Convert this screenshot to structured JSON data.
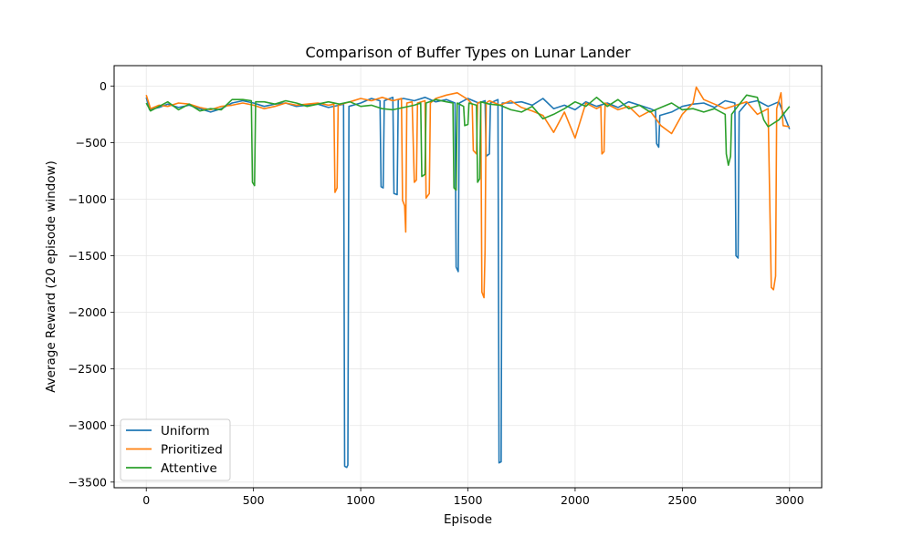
{
  "chart_data": {
    "type": "line",
    "title": "Comparison of Buffer Types on Lunar Lander",
    "xlabel": "Episode",
    "ylabel": "Average Reward (20 episode window)",
    "xlim": [
      -150,
      3150
    ],
    "ylim": [
      -3550,
      180
    ],
    "xticks": [
      0,
      500,
      1000,
      1500,
      2000,
      2500,
      3000
    ],
    "yticks": [
      0,
      -500,
      -1000,
      -1500,
      -2000,
      -2500,
      -3000,
      -3500
    ],
    "xtick_labels": [
      "0",
      "500",
      "1000",
      "1500",
      "2000",
      "2500",
      "3000"
    ],
    "ytick_labels": [
      "0",
      "−500",
      "−1000",
      "−1500",
      "−2000",
      "−2500",
      "−3000",
      "−3500"
    ],
    "grid": true,
    "legend_position": "lower-left",
    "series": [
      {
        "name": "Uniform",
        "color": "#1f77b4",
        "points": [
          [
            0,
            -100
          ],
          [
            15,
            -210
          ],
          [
            60,
            -190
          ],
          [
            100,
            -160
          ],
          [
            150,
            -190
          ],
          [
            200,
            -170
          ],
          [
            250,
            -200
          ],
          [
            300,
            -230
          ],
          [
            350,
            -200
          ],
          [
            400,
            -150
          ],
          [
            450,
            -130
          ],
          [
            500,
            -150
          ],
          [
            550,
            -180
          ],
          [
            600,
            -160
          ],
          [
            650,
            -150
          ],
          [
            700,
            -180
          ],
          [
            750,
            -170
          ],
          [
            800,
            -160
          ],
          [
            850,
            -190
          ],
          [
            900,
            -170
          ],
          [
            920,
            -160
          ],
          [
            925,
            -3360
          ],
          [
            935,
            -3370
          ],
          [
            940,
            -3350
          ],
          [
            945,
            -180
          ],
          [
            1000,
            -150
          ],
          [
            1050,
            -110
          ],
          [
            1090,
            -130
          ],
          [
            1095,
            -890
          ],
          [
            1105,
            -900
          ],
          [
            1110,
            -130
          ],
          [
            1150,
            -100
          ],
          [
            1155,
            -950
          ],
          [
            1170,
            -960
          ],
          [
            1175,
            -120
          ],
          [
            1200,
            -110
          ],
          [
            1250,
            -130
          ],
          [
            1300,
            -100
          ],
          [
            1350,
            -140
          ],
          [
            1400,
            -120
          ],
          [
            1440,
            -150
          ],
          [
            1445,
            -1600
          ],
          [
            1455,
            -1640
          ],
          [
            1460,
            -150
          ],
          [
            1500,
            -110
          ],
          [
            1550,
            -150
          ],
          [
            1580,
            -130
          ],
          [
            1585,
            -620
          ],
          [
            1600,
            -600
          ],
          [
            1605,
            -150
          ],
          [
            1640,
            -120
          ],
          [
            1645,
            -3330
          ],
          [
            1655,
            -3320
          ],
          [
            1660,
            -150
          ],
          [
            1700,
            -150
          ],
          [
            1750,
            -140
          ],
          [
            1800,
            -170
          ],
          [
            1850,
            -110
          ],
          [
            1900,
            -200
          ],
          [
            1950,
            -170
          ],
          [
            2000,
            -210
          ],
          [
            2050,
            -140
          ],
          [
            2100,
            -180
          ],
          [
            2150,
            -150
          ],
          [
            2200,
            -190
          ],
          [
            2250,
            -140
          ],
          [
            2300,
            -170
          ],
          [
            2350,
            -200
          ],
          [
            2375,
            -220
          ],
          [
            2380,
            -510
          ],
          [
            2390,
            -540
          ],
          [
            2395,
            -260
          ],
          [
            2450,
            -230
          ],
          [
            2500,
            -180
          ],
          [
            2550,
            -160
          ],
          [
            2600,
            -150
          ],
          [
            2650,
            -190
          ],
          [
            2700,
            -130
          ],
          [
            2745,
            -150
          ],
          [
            2750,
            -1500
          ],
          [
            2760,
            -1520
          ],
          [
            2765,
            -230
          ],
          [
            2800,
            -150
          ],
          [
            2850,
            -130
          ],
          [
            2900,
            -180
          ],
          [
            2950,
            -140
          ],
          [
            3000,
            -380
          ]
        ]
      },
      {
        "name": "Prioritized",
        "color": "#ff7f0e",
        "points": [
          [
            0,
            -80
          ],
          [
            20,
            -200
          ],
          [
            60,
            -170
          ],
          [
            100,
            -180
          ],
          [
            150,
            -150
          ],
          [
            200,
            -160
          ],
          [
            250,
            -190
          ],
          [
            300,
            -210
          ],
          [
            350,
            -180
          ],
          [
            400,
            -170
          ],
          [
            450,
            -150
          ],
          [
            500,
            -170
          ],
          [
            550,
            -200
          ],
          [
            600,
            -180
          ],
          [
            650,
            -150
          ],
          [
            700,
            -170
          ],
          [
            750,
            -160
          ],
          [
            800,
            -150
          ],
          [
            850,
            -170
          ],
          [
            875,
            -160
          ],
          [
            880,
            -940
          ],
          [
            890,
            -900
          ],
          [
            895,
            -170
          ],
          [
            950,
            -140
          ],
          [
            1000,
            -110
          ],
          [
            1050,
            -130
          ],
          [
            1100,
            -100
          ],
          [
            1150,
            -130
          ],
          [
            1190,
            -110
          ],
          [
            1195,
            -1010
          ],
          [
            1205,
            -1060
          ],
          [
            1210,
            -1290
          ],
          [
            1215,
            -150
          ],
          [
            1240,
            -140
          ],
          [
            1250,
            -850
          ],
          [
            1260,
            -830
          ],
          [
            1265,
            -150
          ],
          [
            1300,
            -130
          ],
          [
            1305,
            -990
          ],
          [
            1320,
            -950
          ],
          [
            1325,
            -150
          ],
          [
            1350,
            -110
          ],
          [
            1400,
            -80
          ],
          [
            1450,
            -60
          ],
          [
            1500,
            -120
          ],
          [
            1520,
            -160
          ],
          [
            1525,
            -570
          ],
          [
            1540,
            -600
          ],
          [
            1545,
            -150
          ],
          [
            1560,
            -140
          ],
          [
            1565,
            -1820
          ],
          [
            1575,
            -1870
          ],
          [
            1580,
            -1450
          ],
          [
            1585,
            -150
          ],
          [
            1600,
            -130
          ],
          [
            1650,
            -170
          ],
          [
            1700,
            -130
          ],
          [
            1750,
            -190
          ],
          [
            1800,
            -220
          ],
          [
            1850,
            -260
          ],
          [
            1900,
            -410
          ],
          [
            1950,
            -230
          ],
          [
            2000,
            -460
          ],
          [
            2050,
            -150
          ],
          [
            2100,
            -200
          ],
          [
            2120,
            -180
          ],
          [
            2125,
            -600
          ],
          [
            2135,
            -580
          ],
          [
            2140,
            -150
          ],
          [
            2200,
            -210
          ],
          [
            2250,
            -180
          ],
          [
            2300,
            -270
          ],
          [
            2350,
            -220
          ],
          [
            2400,
            -350
          ],
          [
            2450,
            -420
          ],
          [
            2500,
            -250
          ],
          [
            2550,
            -150
          ],
          [
            2565,
            -10
          ],
          [
            2600,
            -120
          ],
          [
            2650,
            -160
          ],
          [
            2700,
            -200
          ],
          [
            2750,
            -170
          ],
          [
            2800,
            -140
          ],
          [
            2850,
            -250
          ],
          [
            2900,
            -200
          ],
          [
            2915,
            -1780
          ],
          [
            2925,
            -1800
          ],
          [
            2935,
            -1680
          ],
          [
            2940,
            -200
          ],
          [
            2960,
            -60
          ],
          [
            2970,
            -350
          ],
          [
            3000,
            -360
          ]
        ]
      },
      {
        "name": "Attentive",
        "color": "#2ca02c",
        "points": [
          [
            0,
            -150
          ],
          [
            20,
            -220
          ],
          [
            60,
            -180
          ],
          [
            100,
            -140
          ],
          [
            150,
            -210
          ],
          [
            200,
            -160
          ],
          [
            250,
            -220
          ],
          [
            300,
            -200
          ],
          [
            350,
            -210
          ],
          [
            400,
            -120
          ],
          [
            450,
            -120
          ],
          [
            490,
            -130
          ],
          [
            495,
            -850
          ],
          [
            505,
            -880
          ],
          [
            510,
            -140
          ],
          [
            550,
            -140
          ],
          [
            600,
            -160
          ],
          [
            650,
            -130
          ],
          [
            700,
            -150
          ],
          [
            750,
            -180
          ],
          [
            800,
            -160
          ],
          [
            850,
            -140
          ],
          [
            900,
            -160
          ],
          [
            950,
            -140
          ],
          [
            1000,
            -180
          ],
          [
            1050,
            -170
          ],
          [
            1100,
            -200
          ],
          [
            1150,
            -210
          ],
          [
            1200,
            -190
          ],
          [
            1250,
            -170
          ],
          [
            1280,
            -150
          ],
          [
            1285,
            -800
          ],
          [
            1300,
            -780
          ],
          [
            1305,
            -150
          ],
          [
            1350,
            -120
          ],
          [
            1400,
            -140
          ],
          [
            1430,
            -150
          ],
          [
            1435,
            -900
          ],
          [
            1445,
            -920
          ],
          [
            1450,
            -150
          ],
          [
            1480,
            -180
          ],
          [
            1485,
            -350
          ],
          [
            1500,
            -340
          ],
          [
            1505,
            -150
          ],
          [
            1540,
            -170
          ],
          [
            1545,
            -850
          ],
          [
            1555,
            -820
          ],
          [
            1560,
            -140
          ],
          [
            1600,
            -160
          ],
          [
            1650,
            -170
          ],
          [
            1700,
            -210
          ],
          [
            1750,
            -230
          ],
          [
            1800,
            -180
          ],
          [
            1850,
            -290
          ],
          [
            1900,
            -250
          ],
          [
            1950,
            -200
          ],
          [
            2000,
            -140
          ],
          [
            2050,
            -180
          ],
          [
            2100,
            -100
          ],
          [
            2150,
            -180
          ],
          [
            2200,
            -120
          ],
          [
            2250,
            -200
          ],
          [
            2300,
            -170
          ],
          [
            2350,
            -230
          ],
          [
            2400,
            -190
          ],
          [
            2450,
            -150
          ],
          [
            2500,
            -210
          ],
          [
            2550,
            -200
          ],
          [
            2600,
            -230
          ],
          [
            2650,
            -200
          ],
          [
            2700,
            -250
          ],
          [
            2705,
            -600
          ],
          [
            2715,
            -700
          ],
          [
            2725,
            -620
          ],
          [
            2730,
            -250
          ],
          [
            2750,
            -200
          ],
          [
            2800,
            -80
          ],
          [
            2850,
            -100
          ],
          [
            2880,
            -300
          ],
          [
            2900,
            -360
          ],
          [
            2950,
            -300
          ],
          [
            3000,
            -180
          ]
        ]
      }
    ]
  }
}
